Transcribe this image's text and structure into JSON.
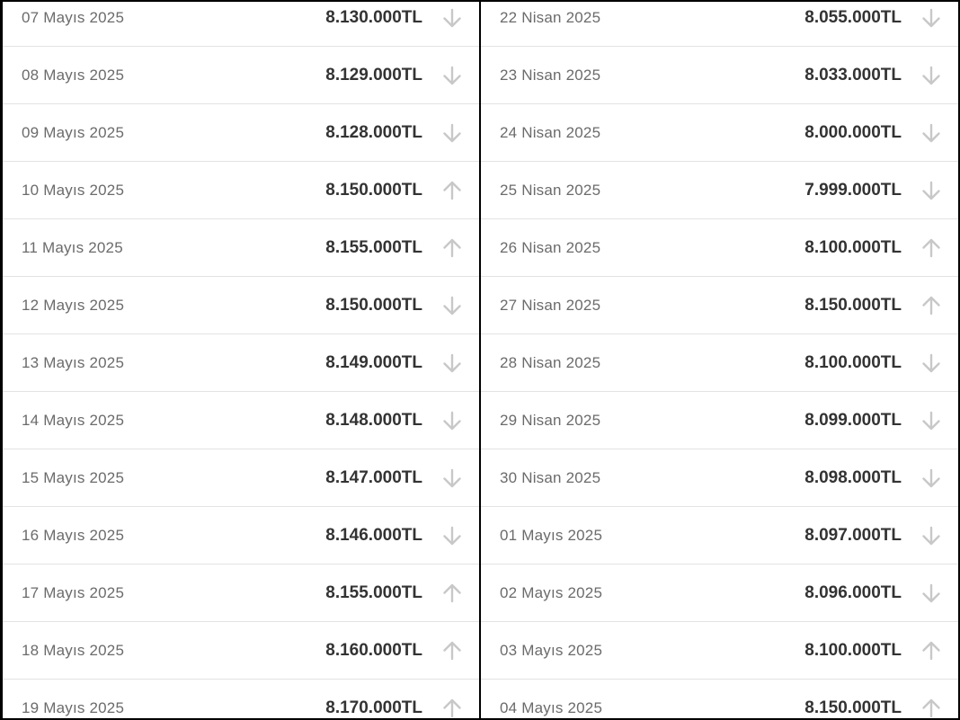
{
  "colors": {
    "arrow": "#c8c8c8",
    "date_text": "#6b6b6b",
    "price_text": "#333333",
    "divider": "#e3e3e3"
  },
  "left_table": [
    {
      "date": "07 Mayıs 2025",
      "price": "8.130.000TL",
      "trend": "down"
    },
    {
      "date": "08 Mayıs 2025",
      "price": "8.129.000TL",
      "trend": "down"
    },
    {
      "date": "09 Mayıs 2025",
      "price": "8.128.000TL",
      "trend": "down"
    },
    {
      "date": "10 Mayıs 2025",
      "price": "8.150.000TL",
      "trend": "up"
    },
    {
      "date": "11 Mayıs 2025",
      "price": "8.155.000TL",
      "trend": "up"
    },
    {
      "date": "12 Mayıs 2025",
      "price": "8.150.000TL",
      "trend": "down"
    },
    {
      "date": "13 Mayıs 2025",
      "price": "8.149.000TL",
      "trend": "down"
    },
    {
      "date": "14 Mayıs 2025",
      "price": "8.148.000TL",
      "trend": "down"
    },
    {
      "date": "15 Mayıs 2025",
      "price": "8.147.000TL",
      "trend": "down"
    },
    {
      "date": "16 Mayıs 2025",
      "price": "8.146.000TL",
      "trend": "down"
    },
    {
      "date": "17 Mayıs 2025",
      "price": "8.155.000TL",
      "trend": "up"
    },
    {
      "date": "18 Mayıs 2025",
      "price": "8.160.000TL",
      "trend": "up"
    },
    {
      "date": "19 Mayıs 2025",
      "price": "8.170.000TL",
      "trend": "up"
    }
  ],
  "right_table": [
    {
      "date": "22 Nisan 2025",
      "price": "8.055.000TL",
      "trend": "down"
    },
    {
      "date": "23 Nisan 2025",
      "price": "8.033.000TL",
      "trend": "down"
    },
    {
      "date": "24 Nisan 2025",
      "price": "8.000.000TL",
      "trend": "down"
    },
    {
      "date": "25 Nisan 2025",
      "price": "7.999.000TL",
      "trend": "down"
    },
    {
      "date": "26 Nisan 2025",
      "price": "8.100.000TL",
      "trend": "up"
    },
    {
      "date": "27 Nisan 2025",
      "price": "8.150.000TL",
      "trend": "up"
    },
    {
      "date": "28 Nisan 2025",
      "price": "8.100.000TL",
      "trend": "down"
    },
    {
      "date": "29 Nisan 2025",
      "price": "8.099.000TL",
      "trend": "down"
    },
    {
      "date": "30 Nisan 2025",
      "price": "8.098.000TL",
      "trend": "down"
    },
    {
      "date": "01 Mayıs 2025",
      "price": "8.097.000TL",
      "trend": "down"
    },
    {
      "date": "02 Mayıs 2025",
      "price": "8.096.000TL",
      "trend": "down"
    },
    {
      "date": "03 Mayıs 2025",
      "price": "8.100.000TL",
      "trend": "up"
    },
    {
      "date": "04 Mayıs 2025",
      "price": "8.150.000TL",
      "trend": "up"
    }
  ]
}
